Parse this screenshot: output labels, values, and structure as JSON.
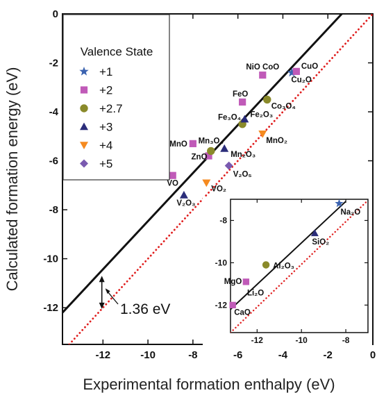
{
  "chart_data": [
    {
      "type": "scatter",
      "title": "",
      "xlabel": "Experimental formation enthalpy (eV)",
      "ylabel": "Calculated formation energy (eV)",
      "xlim": [
        -13.8,
        0
      ],
      "ylim": [
        -13.5,
        0
      ],
      "xticks": [
        -12,
        -10,
        -8,
        -6,
        -4,
        -2,
        0
      ],
      "yticks": [
        0,
        -2,
        -4,
        -6,
        -8,
        -10,
        -12
      ],
      "legend": {
        "title": "Valence State",
        "placement": "top-left",
        "entries": [
          {
            "label": "+1",
            "marker": "star",
            "color": "#3b63b0"
          },
          {
            "label": "+2",
            "marker": "square",
            "color": "#c05ab8"
          },
          {
            "label": "+2.7",
            "marker": "circle",
            "color": "#8a8a2a"
          },
          {
            "label": "+3",
            "marker": "triangle-up",
            "color": "#2b2d7a"
          },
          {
            "label": "+4",
            "marker": "triangle-down",
            "color": "#f58a1f"
          },
          {
            "label": "+5",
            "marker": "diamond",
            "color": "#7a5ab0"
          }
        ]
      },
      "fit_line": {
        "style": "solid",
        "color": "#111111",
        "points": [
          [
            -13.8,
            -12.2
          ],
          [
            -1.38,
            0
          ]
        ]
      },
      "reference_line": {
        "style": "dotted",
        "color": "#e01e1e",
        "points": [
          [
            -13.5,
            -13.5
          ],
          [
            0,
            0
          ]
        ]
      },
      "annotation": {
        "text": "1.36 eV",
        "x": -12.05,
        "y_top": -10.7,
        "y_bottom": -12.05
      },
      "series": [
        {
          "label": "+1",
          "marker": "star",
          "points": [
            {
              "x": -3.6,
              "y": -2.4,
              "label": "Cu₂O"
            }
          ]
        },
        {
          "label": "+2",
          "marker": "square",
          "points": [
            {
              "x": -3.4,
              "y": -2.35,
              "label": "CuO"
            },
            {
              "x": -4.9,
              "y": -2.5,
              "label": "NiO CoO"
            },
            {
              "x": -5.8,
              "y": -3.6,
              "label": "FeO"
            },
            {
              "x": -8.0,
              "y": -5.3,
              "label": "MnO"
            },
            {
              "x": -7.3,
              "y": -5.8,
              "label": "ZnO"
            },
            {
              "x": -8.9,
              "y": -6.6,
              "label": "VO"
            }
          ]
        },
        {
          "label": "+2.7",
          "marker": "circle",
          "points": [
            {
              "x": -4.7,
              "y": -3.5,
              "label": "Co₃O₄"
            },
            {
              "x": -5.8,
              "y": -4.5,
              "label": "Fe₃O₄"
            },
            {
              "x": -7.2,
              "y": -5.6,
              "label": "Mn₃O₄"
            }
          ]
        },
        {
          "label": "+3",
          "marker": "triangle-up",
          "points": [
            {
              "x": -5.7,
              "y": -4.3,
              "label": "Fe₂O₃"
            },
            {
              "x": -6.6,
              "y": -5.5,
              "label": "Mn₂O₃"
            },
            {
              "x": -8.4,
              "y": -7.4,
              "label": "V₂O₃"
            }
          ]
        },
        {
          "label": "+4",
          "marker": "triangle-down",
          "points": [
            {
              "x": -4.9,
              "y": -4.9,
              "label": "MnO₂"
            },
            {
              "x": -7.4,
              "y": -6.9,
              "label": "VO₂"
            }
          ]
        },
        {
          "label": "+5",
          "marker": "diamond",
          "points": [
            {
              "x": -6.4,
              "y": -6.2,
              "label": "V₂O₅"
            }
          ]
        }
      ]
    },
    {
      "type": "scatter",
      "title": "",
      "placement": "inset, bottom-right",
      "xlim": [
        -13.2,
        -7.0
      ],
      "ylim": [
        -13.3,
        -7.0
      ],
      "xticks": [
        -12,
        -10,
        -8
      ],
      "yticks": [
        -8,
        -10,
        -12
      ],
      "fit_line": {
        "style": "solid",
        "color": "#111111",
        "points": [
          [
            -13.2,
            -12.2
          ],
          [
            -8.0,
            -7.1
          ]
        ]
      },
      "reference_line": {
        "style": "dotted",
        "color": "#e01e1e",
        "points": [
          [
            -13.2,
            -13.3
          ],
          [
            -7.0,
            -7.05
          ]
        ]
      },
      "series": [
        {
          "label": "+1",
          "marker": "star",
          "points": [
            {
              "x": -8.3,
              "y": -7.2,
              "label": "Na₂O"
            }
          ]
        },
        {
          "label": "+2",
          "marker": "square",
          "points": [
            {
              "x": -12.5,
              "y": -10.9,
              "label": "MgO"
            },
            {
              "x": -13.1,
              "y": -12.0,
              "label": "CaO"
            }
          ]
        },
        {
          "label": "+2.7",
          "marker": "circle",
          "points": [
            {
              "x": -11.6,
              "y": -10.1,
              "label": "Al₂O₃"
            }
          ]
        },
        {
          "label": "+3",
          "marker": "triangle-up",
          "points": [
            {
              "x": -9.4,
              "y": -8.6,
              "label": "SiO₂"
            }
          ]
        }
      ]
    }
  ]
}
